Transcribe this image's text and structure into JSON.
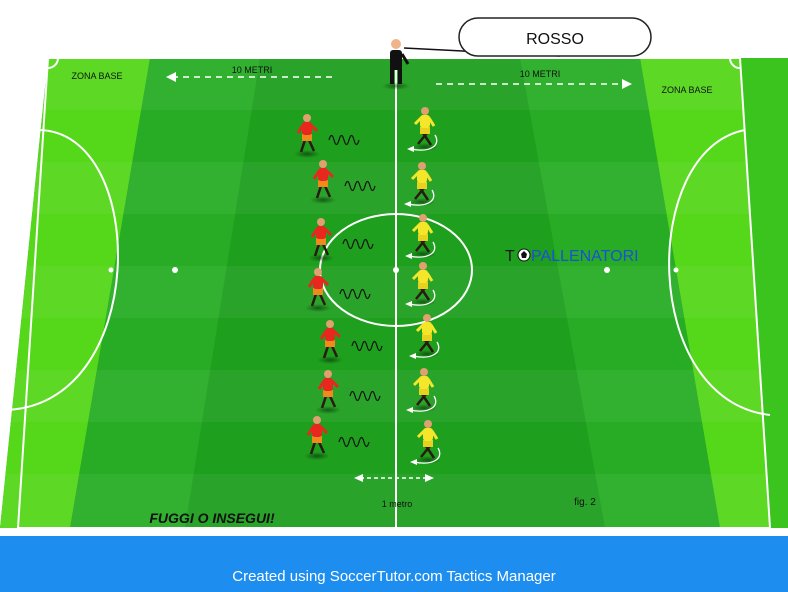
{
  "pitch": {
    "zone_left": "ZONA BASE",
    "zone_right": "ZONA BASE",
    "distance_left": "10 METRI",
    "distance_right": "10 METRI",
    "gap_label": "1 metro",
    "figure_label": "fig. 2",
    "exercise_title": "FUGGI O INSEGUI!",
    "callout": "ROSSO"
  },
  "brand": {
    "part1": "T",
    "part2": "PALLENATORI",
    "color_dark": "#1a1a1a",
    "color_accent": "#1d4fd8"
  },
  "teams": {
    "red_team_color": "#e8281e",
    "yellow_team_color": "#f5e62a",
    "red_player_count": 7,
    "yellow_player_count": 7
  },
  "footer": {
    "credit": "Created using SoccerTutor.com Tactics Manager",
    "color": "#1d8ef0"
  }
}
